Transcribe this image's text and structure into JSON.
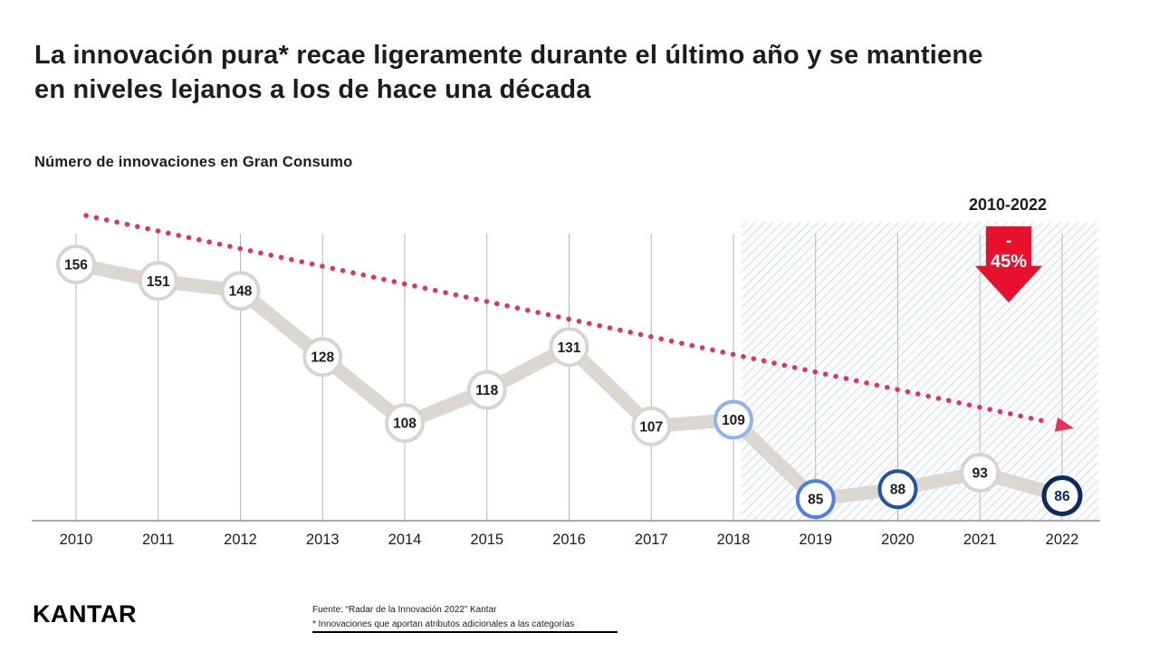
{
  "title": "La innovación pura* recae ligeramente durante el último año y se mantiene\nen niveles lejanos a los de hace una década",
  "subtitle": "Número de innovaciones en Gran Consumo",
  "annotation": {
    "period": "2010-2022",
    "delta_top": "-",
    "delta_value": "45%"
  },
  "footer": {
    "logo": "KANTAR",
    "source_line1": "Fuente: “Radar de la Innovación 2022” Kantar",
    "source_line2": "*  Innovaciones que aportan atributos adicionales a las categorías"
  },
  "colors": {
    "accent_red": "#e8112d",
    "trend_pink": "#e4325f",
    "series_line": "#dcd7d1",
    "gridline": "#b9b5b1",
    "axis": "#8f8b87",
    "hatch_stripe": "#c9ddf2",
    "text_dark": "#1d1d1b",
    "rings": {
      "default": "#d9d4ce",
      "light_blue": "#8db3f0",
      "blue": "#4b7fe1",
      "dark_blue": "#2155a4",
      "navy": "#0c2a61"
    }
  },
  "chart_data": {
    "type": "line",
    "title": "Número de innovaciones en Gran Consumo",
    "categories": [
      "2010",
      "2011",
      "2012",
      "2013",
      "2014",
      "2015",
      "2016",
      "2017",
      "2018",
      "2019",
      "2020",
      "2021",
      "2022"
    ],
    "values": [
      156,
      151,
      148,
      128,
      108,
      118,
      131,
      107,
      109,
      85,
      88,
      93,
      86
    ],
    "ylim": [
      75,
      170
    ],
    "grid": "vertical",
    "legend": "none",
    "highlight_region": {
      "from": "2018",
      "to": "2022",
      "style": "blue-hatch"
    },
    "trend": {
      "direction": "down",
      "label": "2010-2022",
      "delta": "-45%"
    },
    "point_styles": {
      "2018": "light_blue",
      "2019": "blue",
      "2020": "dark_blue",
      "2022": "navy"
    }
  }
}
